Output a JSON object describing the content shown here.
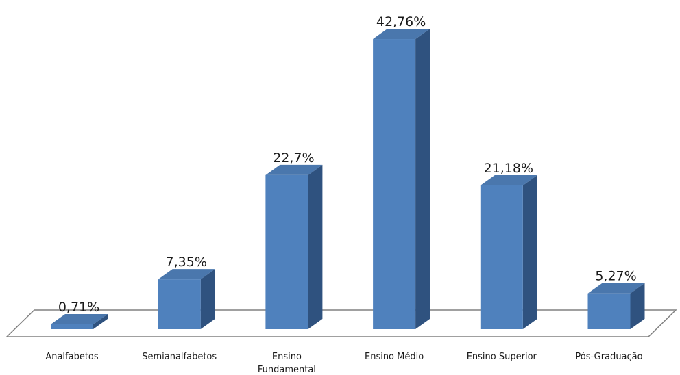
{
  "chart_data": {
    "type": "bar",
    "categories": [
      [
        "Analfabetos"
      ],
      [
        "Semianalfabetos"
      ],
      [
        "Ensino",
        "Fundamental"
      ],
      [
        "Ensino Médio"
      ],
      [
        "Ensino Superior"
      ],
      [
        "Pós-Graduação"
      ]
    ],
    "values": [
      0.71,
      7.35,
      22.7,
      42.76,
      21.18,
      5.27
    ],
    "value_labels": [
      "0,71%",
      "7,35%",
      "22,7%",
      "42,76%",
      "21,18%",
      "5,27%"
    ],
    "ylim": [
      0,
      45
    ],
    "grid": false,
    "legend": "none",
    "colors": {
      "front": "#4f81bd",
      "side": "#2f527f",
      "top": "#4a77ad",
      "floor": "#808080"
    }
  }
}
